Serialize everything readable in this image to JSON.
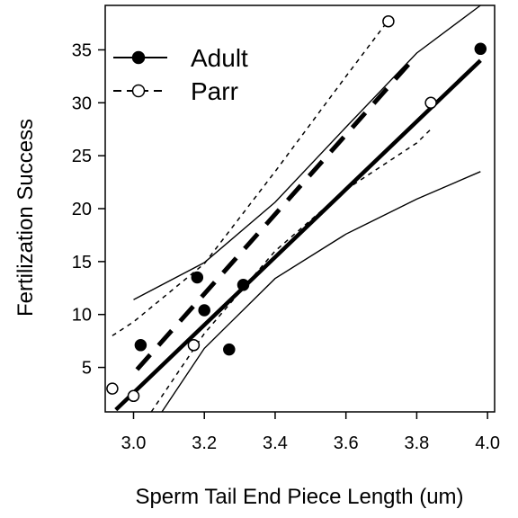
{
  "chart_data": {
    "type": "scatter",
    "xlabel": "Sperm Tail End Piece Length (um)",
    "ylabel": "Fertilization Success",
    "xlim": [
      2.92,
      4.02
    ],
    "ylim": [
      0.8,
      39.2
    ],
    "xticks": [
      3.0,
      3.2,
      3.4,
      3.6,
      3.8,
      4.0
    ],
    "xtick_labels": [
      "3.0",
      "3.2",
      "3.4",
      "3.6",
      "3.8",
      "4.0"
    ],
    "yticks": [
      5,
      10,
      15,
      20,
      25,
      30,
      35
    ],
    "ytick_labels": [
      "5",
      "10",
      "15",
      "20",
      "25",
      "30",
      "35"
    ],
    "grid": false,
    "legend_position": "top-left",
    "series": [
      {
        "name": "Adult",
        "marker": "filled-circle",
        "line_style": "solid",
        "color": "#000000",
        "points": [
          {
            "x": 3.02,
            "y": 7.1
          },
          {
            "x": 3.18,
            "y": 13.5
          },
          {
            "x": 3.2,
            "y": 10.4
          },
          {
            "x": 3.27,
            "y": 6.7
          },
          {
            "x": 3.31,
            "y": 12.8
          },
          {
            "x": 3.98,
            "y": 35.1
          }
        ],
        "fit": {
          "x": [
            2.95,
            3.98
          ],
          "y": [
            1.0,
            34.0
          ]
        },
        "ci_upper": {
          "x": [
            3.0,
            3.2,
            3.4,
            3.6,
            3.8,
            3.98
          ],
          "y": [
            11.4,
            14.9,
            20.6,
            27.7,
            34.7,
            39.3
          ]
        },
        "ci_lower": {
          "x": [
            3.08,
            3.2,
            3.4,
            3.6,
            3.8,
            3.98
          ],
          "y": [
            0.8,
            6.8,
            13.4,
            17.6,
            20.9,
            23.5
          ]
        }
      },
      {
        "name": "Parr",
        "marker": "open-circle",
        "line_style": "dashed",
        "color": "#000000",
        "points": [
          {
            "x": 2.94,
            "y": 3.0
          },
          {
            "x": 3.0,
            "y": 2.3
          },
          {
            "x": 3.17,
            "y": 7.1
          },
          {
            "x": 3.72,
            "y": 37.7
          },
          {
            "x": 3.84,
            "y": 30.0
          }
        ],
        "fit": {
          "x": [
            3.01,
            3.8
          ],
          "y": [
            4.8,
            34.5
          ]
        },
        "ci_upper": {
          "x": [
            2.94,
            3.0,
            3.2,
            3.4,
            3.6,
            3.72
          ],
          "y": [
            8.0,
            9.3,
            14.8,
            23.5,
            32.5,
            37.8
          ]
        },
        "ci_lower": {
          "x": [
            3.05,
            3.2,
            3.4,
            3.6,
            3.8,
            3.84
          ],
          "y": [
            0.8,
            8.2,
            16.0,
            21.8,
            26.2,
            27.5
          ]
        }
      }
    ]
  }
}
